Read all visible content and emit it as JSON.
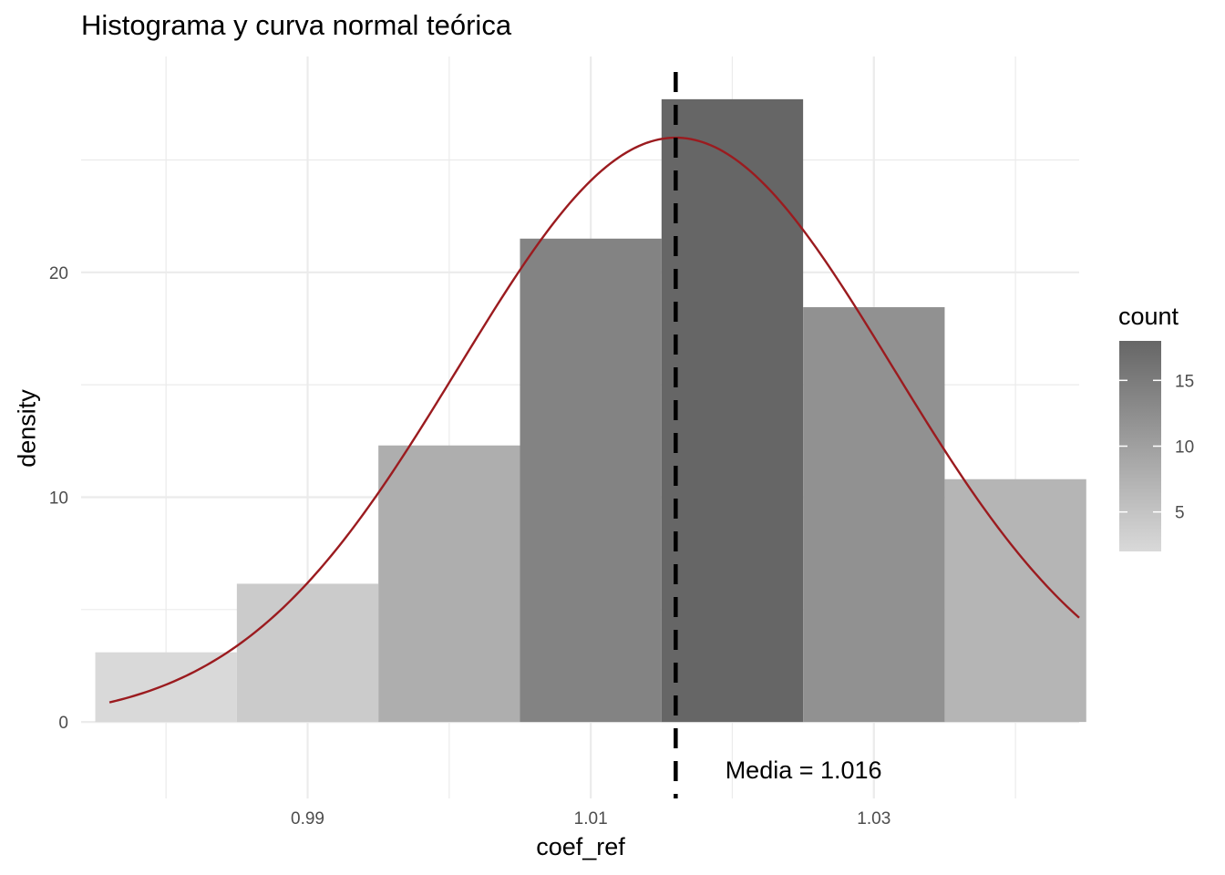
{
  "chart_data": {
    "type": "bar",
    "title": "Histograma y curva normal teórica",
    "xlabel": "coef_ref",
    "ylabel": "density",
    "xlim": [
      0.974,
      1.0445
    ],
    "ylim": [
      -3.4,
      29.6
    ],
    "x_ticks": [
      0.99,
      1.01,
      1.03
    ],
    "x_tick_labels": [
      "0.99",
      "1.01",
      "1.03"
    ],
    "y_ticks": [
      0,
      10,
      20
    ],
    "y_tick_labels": [
      "0",
      "10",
      "20"
    ],
    "grid": true,
    "bins": [
      {
        "x_start": 0.975,
        "x_end": 0.985,
        "density": 3.1,
        "count": 2
      },
      {
        "x_start": 0.985,
        "x_end": 0.995,
        "density": 6.15,
        "count": 4
      },
      {
        "x_start": 0.995,
        "x_end": 1.005,
        "density": 12.3,
        "count": 8
      },
      {
        "x_start": 1.005,
        "x_end": 1.015,
        "density": 21.5,
        "count": 14
      },
      {
        "x_start": 1.015,
        "x_end": 1.025,
        "density": 27.7,
        "count": 18
      },
      {
        "x_start": 1.025,
        "x_end": 1.035,
        "density": 18.45,
        "count": 12
      },
      {
        "x_start": 1.035,
        "x_end": 1.045,
        "density": 10.8,
        "count": 7
      }
    ],
    "normal_curve": {
      "mean": 1.016,
      "sd": 0.01535,
      "x_from": 0.976,
      "x_to": 1.0445,
      "color": "#9b1b1f"
    },
    "mean_line": {
      "x": 1.016,
      "style": "dashed",
      "color": "#000000"
    },
    "annotation": {
      "text": "Media = 1.016",
      "x": 1.0195,
      "y": -2.1
    },
    "legend": {
      "title": "count",
      "placement": "right",
      "min": 2,
      "max": 18,
      "low_color": "#d9d9d9",
      "high_color": "#666666",
      "ticks": [
        5,
        10,
        15
      ],
      "tick_labels": [
        "5",
        "10",
        "15"
      ]
    }
  }
}
